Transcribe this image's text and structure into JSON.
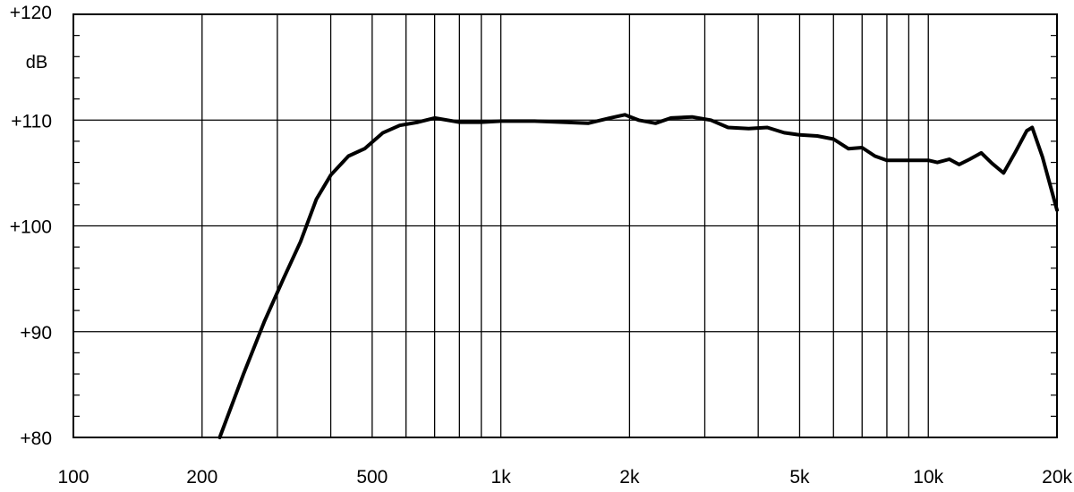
{
  "chart_data": {
    "type": "line",
    "title": "",
    "xlabel": "",
    "ylabel": "dB",
    "x_scale": "log",
    "xlim": [
      100,
      20000
    ],
    "ylim": [
      80,
      120
    ],
    "grid": true,
    "x_tick_labels": [
      {
        "value": 100,
        "label": "100"
      },
      {
        "value": 200,
        "label": "200"
      },
      {
        "value": 500,
        "label": "500"
      },
      {
        "value": 1000,
        "label": "1k"
      },
      {
        "value": 2000,
        "label": "2k"
      },
      {
        "value": 5000,
        "label": "5k"
      },
      {
        "value": 10000,
        "label": "10k"
      },
      {
        "value": 20000,
        "label": "20k"
      }
    ],
    "x_gridlines": [
      200,
      300,
      400,
      500,
      600,
      700,
      800,
      900,
      1000,
      2000,
      3000,
      4000,
      5000,
      6000,
      7000,
      8000,
      9000,
      10000,
      20000
    ],
    "y_tick_labels": [
      {
        "value": 80,
        "label": "+80"
      },
      {
        "value": 90,
        "label": "+90"
      },
      {
        "value": 100,
        "label": "+100"
      },
      {
        "value": 110,
        "label": "+110"
      },
      {
        "value": 120,
        "label": "+120"
      }
    ],
    "colors": {
      "line": "#000000",
      "grid": "#000000",
      "background": "#ffffff"
    },
    "series": [
      {
        "x": [
          220,
          250,
          280,
          310,
          340,
          370,
          400,
          440,
          480,
          530,
          580,
          640,
          700,
          800,
          900,
          1000,
          1200,
          1400,
          1600,
          1800,
          1950,
          2100,
          2300,
          2500,
          2800,
          3100,
          3400,
          3800,
          4200,
          4600,
          5000,
          5500,
          6000,
          6500,
          7000,
          7500,
          8000,
          9000,
          10000,
          10500,
          11200,
          11800,
          12500,
          13300,
          14100,
          15000,
          16000,
          17000,
          17500,
          18500,
          20000
        ],
        "y": [
          80,
          86,
          91,
          95,
          98.5,
          102.5,
          104.8,
          106.6,
          107.3,
          108.8,
          109.5,
          109.8,
          110.2,
          109.8,
          109.8,
          109.9,
          109.9,
          109.8,
          109.7,
          110.2,
          110.5,
          110.0,
          109.7,
          110.2,
          110.3,
          110.0,
          109.3,
          109.2,
          109.3,
          108.8,
          108.6,
          108.5,
          108.2,
          107.3,
          107.4,
          106.6,
          106.2,
          106.2,
          106.2,
          106.0,
          106.3,
          105.8,
          106.3,
          106.9,
          105.9,
          105.0,
          107.0,
          109.0,
          109.3,
          106.5,
          101.5
        ]
      }
    ]
  }
}
